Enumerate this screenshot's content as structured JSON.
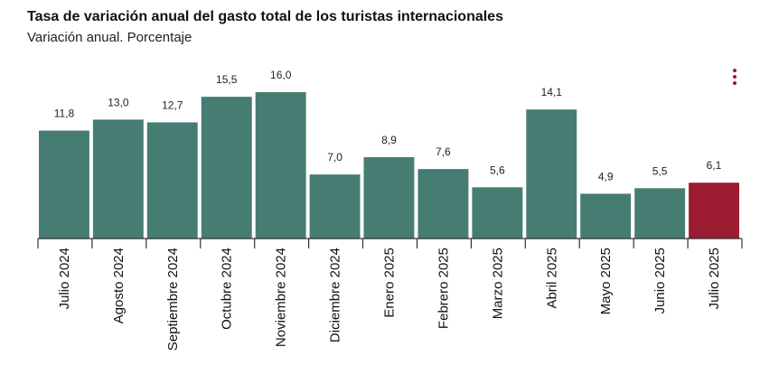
{
  "header": {
    "title": "Tasa de variación anual del gasto total de los turistas internacionales",
    "subtitle": "Variación anual. Porcentaje"
  },
  "menu": {
    "icon": "kebab-menu-icon"
  },
  "colors": {
    "bar": "#457d73",
    "highlight": "#9b1b30"
  },
  "chart_data": {
    "type": "bar",
    "title": "Tasa de variación anual del gasto total de los turistas internacionales",
    "subtitle": "Variación anual. Porcentaje",
    "categories": [
      "Julio 2024",
      "Agosto 2024",
      "Septiembre 2024",
      "Octubre 2024",
      "Noviembre 2024",
      "Diciembre 2024",
      "Enero 2025",
      "Febrero 2025",
      "Marzo 2025",
      "Abril 2025",
      "Mayo 2025",
      "Junio 2025",
      "Julio 2025"
    ],
    "values": [
      11.8,
      13.0,
      12.7,
      15.5,
      16.0,
      7.0,
      8.9,
      7.6,
      5.6,
      14.1,
      4.9,
      5.5,
      6.1
    ],
    "value_labels": [
      "11,8",
      "13,0",
      "12,7",
      "15,5",
      "16,0",
      "7,0",
      "8,9",
      "7,6",
      "5,6",
      "14,1",
      "4,9",
      "5,5",
      "6,1"
    ],
    "highlight_index": 12,
    "ylim": [
      0,
      16
    ],
    "grid": false,
    "legend": "none"
  }
}
